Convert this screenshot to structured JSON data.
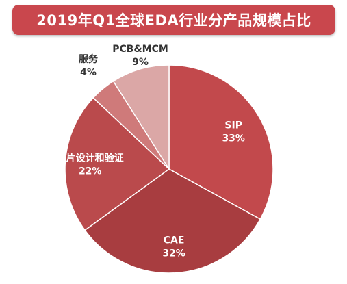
{
  "title": "2019年Q1全球EDA行业分产品规模占比",
  "colors": {
    "title_bg": "#c9474d"
  },
  "chart_data": {
    "type": "pie",
    "title": "2019年Q1全球EDA行业分产品规模占比",
    "slices": [
      {
        "label": "SIP",
        "pct_label": "33%",
        "value": 33,
        "color": "#c2494c",
        "label_color": "#ffffff"
      },
      {
        "label": "CAE",
        "pct_label": "32%",
        "value": 32,
        "color": "#a83d40",
        "label_color": "#ffffff"
      },
      {
        "label": "芯片设计和验证",
        "pct_label": "22%",
        "value": 22,
        "color": "#ba4a4c",
        "label_color": "#ffffff"
      },
      {
        "label": "服务",
        "pct_label": "4%",
        "value": 4,
        "color": "#cf7a7a",
        "label_color": "#333333"
      },
      {
        "label": "PCB&MCM",
        "pct_label": "9%",
        "value": 9,
        "color": "#dba7a6",
        "label_color": "#333333"
      }
    ]
  }
}
